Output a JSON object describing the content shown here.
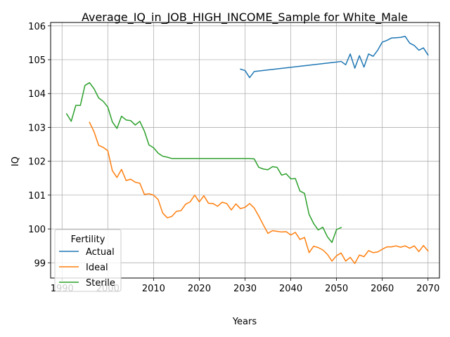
{
  "chart_data": {
    "type": "line",
    "title": "Average_IQ_in_JOB_HIGH_INCOME_Sample for White_Male",
    "xlabel": "Years",
    "ylabel": "IQ",
    "xlim": [
      1987.5,
      2072.5
    ],
    "ylim": [
      98.55,
      106.1
    ],
    "xticks": [
      1990,
      2000,
      2010,
      2020,
      2030,
      2040,
      2050,
      2060,
      2070
    ],
    "yticks": [
      99,
      100,
      101,
      102,
      103,
      104,
      105,
      106
    ],
    "grid": true,
    "legend": {
      "title": "Fertility",
      "placement": "lower-left"
    },
    "series": [
      {
        "name": "Actual",
        "color": "#1f77b4",
        "x": [
          2029,
          2030,
          2031,
          2032,
          2050,
          2051,
          2052,
          2053,
          2054,
          2055,
          2056,
          2057,
          2058,
          2059,
          2060,
          2061,
          2062,
          2063,
          2064,
          2065,
          2066,
          2067,
          2068,
          2069,
          2070
        ],
        "y": [
          104.72,
          104.68,
          104.47,
          104.65,
          104.93,
          104.95,
          104.85,
          105.17,
          104.75,
          105.12,
          104.78,
          105.17,
          105.1,
          105.28,
          105.52,
          105.57,
          105.64,
          105.65,
          105.66,
          105.69,
          105.49,
          105.42,
          105.28,
          105.35,
          105.14
        ]
      },
      {
        "name": "Ideal",
        "color": "#ff7f0e",
        "x": [
          1996,
          1997,
          1998,
          1999,
          2000,
          2001,
          2002,
          2003,
          2004,
          2005,
          2006,
          2007,
          2008,
          2009,
          2010,
          2011,
          2012,
          2013,
          2014,
          2015,
          2016,
          2017,
          2018,
          2019,
          2020,
          2021,
          2022,
          2023,
          2024,
          2025,
          2026,
          2027,
          2028,
          2029,
          2030,
          2031,
          2032,
          2033,
          2034,
          2035,
          2036,
          2037,
          2038,
          2039,
          2040,
          2041,
          2042,
          2043,
          2044,
          2045,
          2046,
          2047,
          2048,
          2049,
          2050,
          2051,
          2052,
          2053,
          2054,
          2055,
          2056,
          2057,
          2058,
          2059,
          2060,
          2061,
          2062,
          2063,
          2064,
          2065,
          2066,
          2067,
          2068,
          2069,
          2070
        ],
        "y": [
          103.15,
          102.87,
          102.47,
          102.41,
          102.31,
          101.72,
          101.52,
          101.76,
          101.43,
          101.47,
          101.38,
          101.35,
          101.02,
          101.04,
          101.0,
          100.87,
          100.47,
          100.33,
          100.37,
          100.52,
          100.54,
          100.73,
          100.8,
          101.0,
          100.8,
          100.98,
          100.76,
          100.75,
          100.67,
          100.79,
          100.75,
          100.56,
          100.74,
          100.6,
          100.64,
          100.75,
          100.62,
          100.38,
          100.12,
          99.87,
          99.95,
          99.93,
          99.91,
          99.92,
          99.82,
          99.9,
          99.69,
          99.75,
          99.3,
          99.49,
          99.45,
          99.38,
          99.25,
          99.05,
          99.21,
          99.29,
          99.05,
          99.16,
          98.98,
          99.23,
          99.18,
          99.36,
          99.3,
          99.32,
          99.4,
          99.47,
          99.47,
          99.5,
          99.46,
          99.5,
          99.43,
          99.5,
          99.33,
          99.51,
          99.35
        ]
      },
      {
        "name": "Sterile",
        "color": "#2ca02c",
        "x": [
          1991,
          1992,
          1993,
          1994,
          1995,
          1996,
          1997,
          1998,
          1999,
          2000,
          2001,
          2002,
          2003,
          2004,
          2005,
          2006,
          2007,
          2008,
          2009,
          2010,
          2011,
          2012,
          2013,
          2014,
          2015,
          2016,
          2017,
          2018,
          2019,
          2020,
          2021,
          2022,
          2023,
          2024,
          2025,
          2026,
          2027,
          2028,
          2029,
          2030,
          2031,
          2032,
          2033,
          2034,
          2035,
          2036,
          2037,
          2038,
          2039,
          2040,
          2041,
          2042,
          2043,
          2044,
          2045,
          2046,
          2047,
          2048,
          2049,
          2050,
          2051
        ],
        "y": [
          103.4,
          103.18,
          103.65,
          103.65,
          104.24,
          104.32,
          104.14,
          103.87,
          103.77,
          103.6,
          103.16,
          102.97,
          103.33,
          103.22,
          103.2,
          103.07,
          103.18,
          102.89,
          102.48,
          102.4,
          102.24,
          102.15,
          102.12,
          102.08,
          102.08,
          102.08,
          102.08,
          102.08,
          102.08,
          102.08,
          102.08,
          102.08,
          102.08,
          102.08,
          102.08,
          102.08,
          102.08,
          102.08,
          102.08,
          102.08,
          102.08,
          102.07,
          101.82,
          101.77,
          101.75,
          101.84,
          101.82,
          101.59,
          101.63,
          101.48,
          101.49,
          101.12,
          101.05,
          100.43,
          100.16,
          99.97,
          100.05,
          99.77,
          99.6,
          99.98,
          100.04
        ]
      }
    ]
  }
}
